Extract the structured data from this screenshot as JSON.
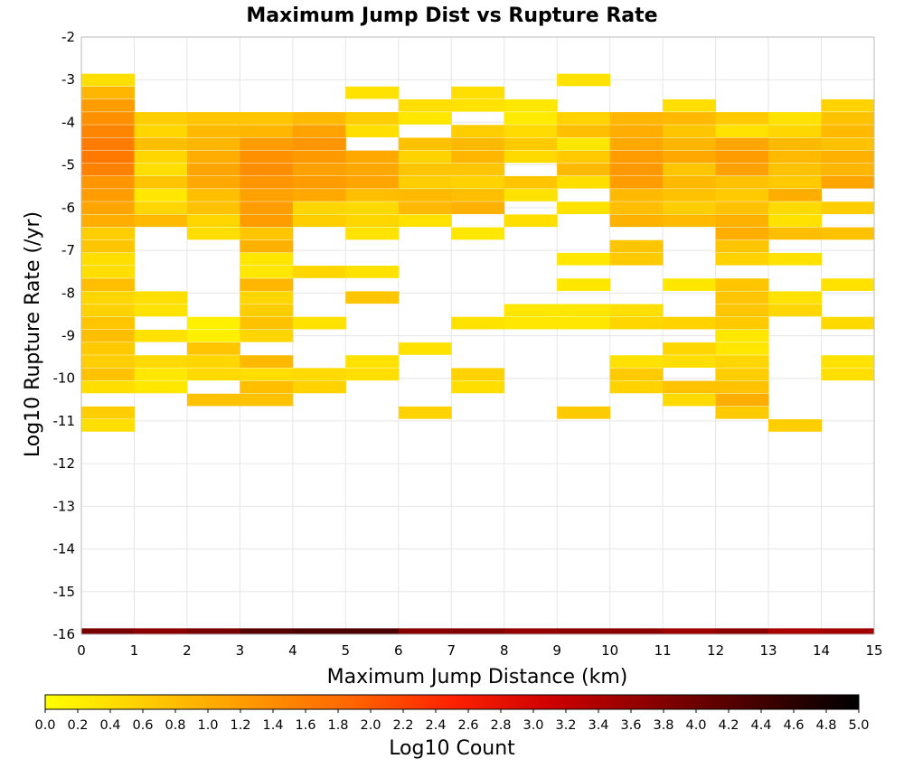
{
  "chart_data": {
    "type": "heatmap",
    "title": "Maximum Jump Dist vs Rupture Rate",
    "xlabel": "Maximum Jump Distance (km)",
    "ylabel": "Log10 Rupture Rate (/yr)",
    "xlim": [
      0,
      15
    ],
    "ylim": [
      -16,
      -2
    ],
    "x_ticks": [
      "0",
      "1",
      "2",
      "3",
      "4",
      "5",
      "6",
      "7",
      "8",
      "9",
      "10",
      "11",
      "12",
      "13",
      "14",
      "15"
    ],
    "y_ticks": [
      "-2",
      "-3",
      "-4",
      "-5",
      "-6",
      "-7",
      "-8",
      "-9",
      "-10",
      "-11",
      "-12",
      "-13",
      "-14",
      "-15",
      "-16"
    ],
    "colorbar": {
      "label": "Log10 Count",
      "range": [
        0,
        5
      ],
      "ticks": [
        "0.0",
        "0.2",
        "0.4",
        "0.6",
        "0.8",
        "1.0",
        "1.2",
        "1.4",
        "1.6",
        "1.8",
        "2.0",
        "2.2",
        "2.4",
        "2.6",
        "2.8",
        "3.0",
        "3.2",
        "3.4",
        "3.6",
        "3.8",
        "4.0",
        "4.2",
        "4.4",
        "4.6",
        "4.8",
        "5.0"
      ],
      "colors": [
        "#ffff00",
        "#ffcc00",
        "#ff9900",
        "#ff6600",
        "#ff2200",
        "#cc0000",
        "#880000",
        "#440000",
        "#000000"
      ]
    },
    "grid": true,
    "cell_height_log10": 0.28,
    "cells": [
      {
        "x": 0.5,
        "y": -3.0,
        "v": 0.4
      },
      {
        "x": 0.5,
        "y": -3.3,
        "v": 0.9
      },
      {
        "x": 0.5,
        "y": -3.6,
        "v": 1.2
      },
      {
        "x": 0.5,
        "y": -3.9,
        "v": 1.35
      },
      {
        "x": 0.5,
        "y": -4.2,
        "v": 1.5
      },
      {
        "x": 0.5,
        "y": -4.5,
        "v": 1.6
      },
      {
        "x": 0.5,
        "y": -4.8,
        "v": 1.65
      },
      {
        "x": 0.5,
        "y": -5.1,
        "v": 1.55
      },
      {
        "x": 0.5,
        "y": -5.4,
        "v": 1.3
      },
      {
        "x": 0.5,
        "y": -5.7,
        "v": 1.2
      },
      {
        "x": 0.5,
        "y": -6.0,
        "v": 1.1
      },
      {
        "x": 0.5,
        "y": -6.3,
        "v": 1.0
      },
      {
        "x": 0.5,
        "y": -6.6,
        "v": 0.6
      },
      {
        "x": 0.5,
        "y": -6.9,
        "v": 0.7
      },
      {
        "x": 0.5,
        "y": -7.2,
        "v": 0.4
      },
      {
        "x": 0.5,
        "y": -7.5,
        "v": 0.4
      },
      {
        "x": 0.5,
        "y": -7.8,
        "v": 0.8
      },
      {
        "x": 0.5,
        "y": -8.1,
        "v": 0.5
      },
      {
        "x": 0.5,
        "y": -8.4,
        "v": 0.55
      },
      {
        "x": 0.5,
        "y": -8.7,
        "v": 0.7
      },
      {
        "x": 0.5,
        "y": -9.0,
        "v": 0.8
      },
      {
        "x": 0.5,
        "y": -9.3,
        "v": 0.65
      },
      {
        "x": 0.5,
        "y": -9.6,
        "v": 0.6
      },
      {
        "x": 0.5,
        "y": -9.9,
        "v": 0.75
      },
      {
        "x": 0.5,
        "y": -10.2,
        "v": 0.4
      },
      {
        "x": 0.5,
        "y": -10.8,
        "v": 0.6
      },
      {
        "x": 0.5,
        "y": -11.1,
        "v": 0.4
      },
      {
        "x": 1.5,
        "y": -3.9,
        "v": 0.6
      },
      {
        "x": 1.5,
        "y": -4.2,
        "v": 0.5
      },
      {
        "x": 1.5,
        "y": -4.5,
        "v": 0.8
      },
      {
        "x": 1.5,
        "y": -4.8,
        "v": 0.5
      },
      {
        "x": 1.5,
        "y": -5.1,
        "v": 0.4
      },
      {
        "x": 1.5,
        "y": -5.4,
        "v": 0.7
      },
      {
        "x": 1.5,
        "y": -5.7,
        "v": 0.3
      },
      {
        "x": 1.5,
        "y": -6.0,
        "v": 0.5
      },
      {
        "x": 1.5,
        "y": -6.3,
        "v": 0.85
      },
      {
        "x": 1.5,
        "y": -8.1,
        "v": 0.4
      },
      {
        "x": 1.5,
        "y": -8.4,
        "v": 0.35
      },
      {
        "x": 1.5,
        "y": -9.0,
        "v": 0.35
      },
      {
        "x": 1.5,
        "y": -9.6,
        "v": 0.45
      },
      {
        "x": 1.5,
        "y": -9.9,
        "v": 0.3
      },
      {
        "x": 1.5,
        "y": -10.2,
        "v": 0.3
      },
      {
        "x": 2.5,
        "y": -3.9,
        "v": 0.7
      },
      {
        "x": 2.5,
        "y": -4.2,
        "v": 0.85
      },
      {
        "x": 2.5,
        "y": -4.5,
        "v": 0.9
      },
      {
        "x": 2.5,
        "y": -4.8,
        "v": 1.0
      },
      {
        "x": 2.5,
        "y": -5.1,
        "v": 1.1
      },
      {
        "x": 2.5,
        "y": -5.4,
        "v": 1.05
      },
      {
        "x": 2.5,
        "y": -5.7,
        "v": 0.8
      },
      {
        "x": 2.5,
        "y": -6.0,
        "v": 0.75
      },
      {
        "x": 2.5,
        "y": -6.3,
        "v": 0.5
      },
      {
        "x": 2.5,
        "y": -6.6,
        "v": 0.4
      },
      {
        "x": 2.5,
        "y": -8.7,
        "v": 0.2
      },
      {
        "x": 2.5,
        "y": -9.0,
        "v": 0.2
      },
      {
        "x": 2.5,
        "y": -9.3,
        "v": 0.7
      },
      {
        "x": 2.5,
        "y": -9.6,
        "v": 0.5
      },
      {
        "x": 2.5,
        "y": -9.9,
        "v": 0.45
      },
      {
        "x": 2.5,
        "y": -10.5,
        "v": 0.75
      },
      {
        "x": 3.5,
        "y": -3.9,
        "v": 0.7
      },
      {
        "x": 3.5,
        "y": -4.2,
        "v": 0.9
      },
      {
        "x": 3.5,
        "y": -4.5,
        "v": 1.2
      },
      {
        "x": 3.5,
        "y": -4.8,
        "v": 1.35
      },
      {
        "x": 3.5,
        "y": -5.1,
        "v": 1.4
      },
      {
        "x": 3.5,
        "y": -5.4,
        "v": 1.3
      },
      {
        "x": 3.5,
        "y": -5.7,
        "v": 1.15
      },
      {
        "x": 3.5,
        "y": -6.0,
        "v": 1.2
      },
      {
        "x": 3.5,
        "y": -6.3,
        "v": 1.2
      },
      {
        "x": 3.5,
        "y": -6.6,
        "v": 0.7
      },
      {
        "x": 3.5,
        "y": -6.9,
        "v": 0.95
      },
      {
        "x": 3.5,
        "y": -7.2,
        "v": 0.3
      },
      {
        "x": 3.5,
        "y": -7.5,
        "v": 0.3
      },
      {
        "x": 3.5,
        "y": -7.8,
        "v": 0.9
      },
      {
        "x": 3.5,
        "y": -8.1,
        "v": 0.5
      },
      {
        "x": 3.5,
        "y": -8.4,
        "v": 0.6
      },
      {
        "x": 3.5,
        "y": -8.7,
        "v": 0.75
      },
      {
        "x": 3.5,
        "y": -9.0,
        "v": 0.5
      },
      {
        "x": 3.5,
        "y": -9.6,
        "v": 0.85
      },
      {
        "x": 3.5,
        "y": -9.9,
        "v": 0.4
      },
      {
        "x": 3.5,
        "y": -10.2,
        "v": 0.8
      },
      {
        "x": 3.5,
        "y": -10.5,
        "v": 0.75
      },
      {
        "x": 4.5,
        "y": -3.9,
        "v": 0.85
      },
      {
        "x": 4.5,
        "y": -4.2,
        "v": 1.15
      },
      {
        "x": 4.5,
        "y": -4.5,
        "v": 1.3
      },
      {
        "x": 4.5,
        "y": -4.8,
        "v": 1.25
      },
      {
        "x": 4.5,
        "y": -5.1,
        "v": 1.15
      },
      {
        "x": 4.5,
        "y": -5.4,
        "v": 1.2
      },
      {
        "x": 4.5,
        "y": -5.7,
        "v": 1.05
      },
      {
        "x": 4.5,
        "y": -6.0,
        "v": 0.5
      },
      {
        "x": 4.5,
        "y": -6.3,
        "v": 0.6
      },
      {
        "x": 4.5,
        "y": -7.5,
        "v": 0.5
      },
      {
        "x": 4.5,
        "y": -8.7,
        "v": 0.35
      },
      {
        "x": 4.5,
        "y": -9.9,
        "v": 0.45
      },
      {
        "x": 4.5,
        "y": -10.2,
        "v": 0.55
      },
      {
        "x": 5.5,
        "y": -3.3,
        "v": 0.35
      },
      {
        "x": 5.5,
        "y": -3.9,
        "v": 0.6
      },
      {
        "x": 5.5,
        "y": -4.2,
        "v": 0.4
      },
      {
        "x": 5.5,
        "y": -4.8,
        "v": 1.05
      },
      {
        "x": 5.5,
        "y": -5.1,
        "v": 1.05
      },
      {
        "x": 5.5,
        "y": -5.4,
        "v": 1.1
      },
      {
        "x": 5.5,
        "y": -5.7,
        "v": 0.8
      },
      {
        "x": 5.5,
        "y": -6.0,
        "v": 0.45
      },
      {
        "x": 5.5,
        "y": -6.3,
        "v": 0.5
      },
      {
        "x": 5.5,
        "y": -6.6,
        "v": 0.35
      },
      {
        "x": 5.5,
        "y": -7.5,
        "v": 0.35
      },
      {
        "x": 5.5,
        "y": -8.1,
        "v": 0.7
      },
      {
        "x": 5.5,
        "y": -9.6,
        "v": 0.35
      },
      {
        "x": 5.5,
        "y": -9.9,
        "v": 0.4
      },
      {
        "x": 6.5,
        "y": -3.6,
        "v": 0.4
      },
      {
        "x": 6.5,
        "y": -3.9,
        "v": 0.3
      },
      {
        "x": 6.5,
        "y": -4.5,
        "v": 0.75
      },
      {
        "x": 6.5,
        "y": -4.8,
        "v": 0.55
      },
      {
        "x": 6.5,
        "y": -5.1,
        "v": 0.7
      },
      {
        "x": 6.5,
        "y": -5.4,
        "v": 0.6
      },
      {
        "x": 6.5,
        "y": -5.7,
        "v": 0.85
      },
      {
        "x": 6.5,
        "y": -6.0,
        "v": 0.85
      },
      {
        "x": 6.5,
        "y": -6.3,
        "v": 0.35
      },
      {
        "x": 6.5,
        "y": -9.3,
        "v": 0.35
      },
      {
        "x": 6.5,
        "y": -10.8,
        "v": 0.55
      },
      {
        "x": 7.5,
        "y": -3.3,
        "v": 0.4
      },
      {
        "x": 7.5,
        "y": -3.6,
        "v": 0.35
      },
      {
        "x": 7.5,
        "y": -4.2,
        "v": 0.6
      },
      {
        "x": 7.5,
        "y": -4.5,
        "v": 0.85
      },
      {
        "x": 7.5,
        "y": -4.8,
        "v": 0.9
      },
      {
        "x": 7.5,
        "y": -5.1,
        "v": 0.7
      },
      {
        "x": 7.5,
        "y": -5.4,
        "v": 0.55
      },
      {
        "x": 7.5,
        "y": -5.7,
        "v": 0.8
      },
      {
        "x": 7.5,
        "y": -6.0,
        "v": 0.95
      },
      {
        "x": 7.5,
        "y": -6.6,
        "v": 0.3
      },
      {
        "x": 7.5,
        "y": -8.7,
        "v": 0.35
      },
      {
        "x": 7.5,
        "y": -9.9,
        "v": 0.55
      },
      {
        "x": 7.5,
        "y": -10.2,
        "v": 0.4
      },
      {
        "x": 8.5,
        "y": -3.6,
        "v": 0.3
      },
      {
        "x": 8.5,
        "y": -3.9,
        "v": 0.25
      },
      {
        "x": 8.5,
        "y": -4.2,
        "v": 0.45
      },
      {
        "x": 8.5,
        "y": -4.5,
        "v": 0.65
      },
      {
        "x": 8.5,
        "y": -4.8,
        "v": 0.45
      },
      {
        "x": 8.5,
        "y": -5.4,
        "v": 0.7
      },
      {
        "x": 8.5,
        "y": -5.7,
        "v": 0.35
      },
      {
        "x": 8.5,
        "y": -6.3,
        "v": 0.4
      },
      {
        "x": 8.5,
        "y": -8.4,
        "v": 0.3
      },
      {
        "x": 8.5,
        "y": -8.7,
        "v": 0.3
      },
      {
        "x": 9.5,
        "y": -3.0,
        "v": 0.35
      },
      {
        "x": 9.5,
        "y": -3.9,
        "v": 0.55
      },
      {
        "x": 9.5,
        "y": -4.2,
        "v": 0.8
      },
      {
        "x": 9.5,
        "y": -4.5,
        "v": 0.3
      },
      {
        "x": 9.5,
        "y": -4.8,
        "v": 0.65
      },
      {
        "x": 9.5,
        "y": -5.1,
        "v": 0.85
      },
      {
        "x": 9.5,
        "y": -5.4,
        "v": 0.4
      },
      {
        "x": 9.5,
        "y": -6.0,
        "v": 0.35
      },
      {
        "x": 9.5,
        "y": -7.2,
        "v": 0.3
      },
      {
        "x": 9.5,
        "y": -7.8,
        "v": 0.3
      },
      {
        "x": 9.5,
        "y": -8.4,
        "v": 0.3
      },
      {
        "x": 9.5,
        "y": -8.7,
        "v": 0.3
      },
      {
        "x": 9.5,
        "y": -10.8,
        "v": 0.65
      },
      {
        "x": 10.5,
        "y": -3.9,
        "v": 0.9
      },
      {
        "x": 10.5,
        "y": -4.2,
        "v": 1.0
      },
      {
        "x": 10.5,
        "y": -4.5,
        "v": 1.05
      },
      {
        "x": 10.5,
        "y": -4.8,
        "v": 1.2
      },
      {
        "x": 10.5,
        "y": -5.1,
        "v": 1.25
      },
      {
        "x": 10.5,
        "y": -5.4,
        "v": 1.2
      },
      {
        "x": 10.5,
        "y": -5.7,
        "v": 0.85
      },
      {
        "x": 10.5,
        "y": -6.0,
        "v": 0.8
      },
      {
        "x": 10.5,
        "y": -6.3,
        "v": 0.95
      },
      {
        "x": 10.5,
        "y": -6.9,
        "v": 0.7
      },
      {
        "x": 10.5,
        "y": -7.2,
        "v": 0.65
      },
      {
        "x": 10.5,
        "y": -8.4,
        "v": 0.4
      },
      {
        "x": 10.5,
        "y": -8.7,
        "v": 0.5
      },
      {
        "x": 10.5,
        "y": -9.6,
        "v": 0.35
      },
      {
        "x": 10.5,
        "y": -9.9,
        "v": 0.65
      },
      {
        "x": 10.5,
        "y": -10.2,
        "v": 0.55
      },
      {
        "x": 11.5,
        "y": -3.6,
        "v": 0.4
      },
      {
        "x": 11.5,
        "y": -3.9,
        "v": 0.85
      },
      {
        "x": 11.5,
        "y": -4.2,
        "v": 0.7
      },
      {
        "x": 11.5,
        "y": -4.5,
        "v": 0.9
      },
      {
        "x": 11.5,
        "y": -4.8,
        "v": 1.05
      },
      {
        "x": 11.5,
        "y": -5.1,
        "v": 0.7
      },
      {
        "x": 11.5,
        "y": -5.4,
        "v": 0.85
      },
      {
        "x": 11.5,
        "y": -5.7,
        "v": 0.75
      },
      {
        "x": 11.5,
        "y": -6.0,
        "v": 0.6
      },
      {
        "x": 11.5,
        "y": -6.3,
        "v": 0.85
      },
      {
        "x": 11.5,
        "y": -7.8,
        "v": 0.3
      },
      {
        "x": 11.5,
        "y": -8.7,
        "v": 0.55
      },
      {
        "x": 11.5,
        "y": -9.3,
        "v": 0.5
      },
      {
        "x": 11.5,
        "y": -9.6,
        "v": 0.4
      },
      {
        "x": 11.5,
        "y": -10.2,
        "v": 0.75
      },
      {
        "x": 11.5,
        "y": -10.5,
        "v": 0.45
      },
      {
        "x": 12.5,
        "y": -3.9,
        "v": 0.65
      },
      {
        "x": 12.5,
        "y": -4.2,
        "v": 0.35
      },
      {
        "x": 12.5,
        "y": -4.5,
        "v": 1.1
      },
      {
        "x": 12.5,
        "y": -4.8,
        "v": 1.2
      },
      {
        "x": 12.5,
        "y": -5.1,
        "v": 1.15
      },
      {
        "x": 12.5,
        "y": -5.4,
        "v": 0.75
      },
      {
        "x": 12.5,
        "y": -5.7,
        "v": 0.65
      },
      {
        "x": 12.5,
        "y": -6.0,
        "v": 0.75
      },
      {
        "x": 12.5,
        "y": -6.3,
        "v": 0.95
      },
      {
        "x": 12.5,
        "y": -6.6,
        "v": 1.0
      },
      {
        "x": 12.5,
        "y": -6.9,
        "v": 0.7
      },
      {
        "x": 12.5,
        "y": -7.2,
        "v": 0.55
      },
      {
        "x": 12.5,
        "y": -7.8,
        "v": 0.7
      },
      {
        "x": 12.5,
        "y": -8.1,
        "v": 0.7
      },
      {
        "x": 12.5,
        "y": -8.4,
        "v": 0.7
      },
      {
        "x": 12.5,
        "y": -8.7,
        "v": 0.65
      },
      {
        "x": 12.5,
        "y": -9.0,
        "v": 0.3
      },
      {
        "x": 12.5,
        "y": -9.3,
        "v": 0.3
      },
      {
        "x": 12.5,
        "y": -9.6,
        "v": 0.5
      },
      {
        "x": 12.5,
        "y": -9.9,
        "v": 0.6
      },
      {
        "x": 12.5,
        "y": -10.2,
        "v": 0.75
      },
      {
        "x": 12.5,
        "y": -10.5,
        "v": 1.0
      },
      {
        "x": 12.5,
        "y": -10.8,
        "v": 0.65
      },
      {
        "x": 13.5,
        "y": -3.9,
        "v": 0.35
      },
      {
        "x": 13.5,
        "y": -4.2,
        "v": 0.5
      },
      {
        "x": 13.5,
        "y": -4.5,
        "v": 0.85
      },
      {
        "x": 13.5,
        "y": -4.8,
        "v": 0.85
      },
      {
        "x": 13.5,
        "y": -5.1,
        "v": 0.75
      },
      {
        "x": 13.5,
        "y": -5.4,
        "v": 0.65
      },
      {
        "x": 13.5,
        "y": -5.7,
        "v": 1.0
      },
      {
        "x": 13.5,
        "y": -6.0,
        "v": 0.45
      },
      {
        "x": 13.5,
        "y": -6.3,
        "v": 0.35
      },
      {
        "x": 13.5,
        "y": -6.6,
        "v": 0.8
      },
      {
        "x": 13.5,
        "y": -7.2,
        "v": 0.35
      },
      {
        "x": 13.5,
        "y": -8.1,
        "v": 0.35
      },
      {
        "x": 13.5,
        "y": -8.4,
        "v": 0.5
      },
      {
        "x": 13.5,
        "y": -11.1,
        "v": 0.6
      },
      {
        "x": 14.5,
        "y": -3.6,
        "v": 0.55
      },
      {
        "x": 14.5,
        "y": -3.9,
        "v": 0.75
      },
      {
        "x": 14.5,
        "y": -4.2,
        "v": 0.85
      },
      {
        "x": 14.5,
        "y": -4.5,
        "v": 0.75
      },
      {
        "x": 14.5,
        "y": -4.8,
        "v": 0.95
      },
      {
        "x": 14.5,
        "y": -5.1,
        "v": 0.9
      },
      {
        "x": 14.5,
        "y": -5.4,
        "v": 1.1
      },
      {
        "x": 14.5,
        "y": -6.0,
        "v": 0.6
      },
      {
        "x": 14.5,
        "y": -6.6,
        "v": 0.75
      },
      {
        "x": 14.5,
        "y": -7.8,
        "v": 0.35
      },
      {
        "x": 14.5,
        "y": -8.7,
        "v": 0.45
      },
      {
        "x": 14.5,
        "y": -9.6,
        "v": 0.35
      },
      {
        "x": 14.5,
        "y": -9.9,
        "v": 0.4
      }
    ],
    "bottom_row": {
      "y": -16,
      "values": [
        3.9,
        3.7,
        3.9,
        4.2,
        4.3,
        4.3,
        3.75,
        3.8,
        3.65,
        3.7,
        3.7,
        3.55,
        3.7,
        3.45,
        3.5
      ]
    }
  }
}
